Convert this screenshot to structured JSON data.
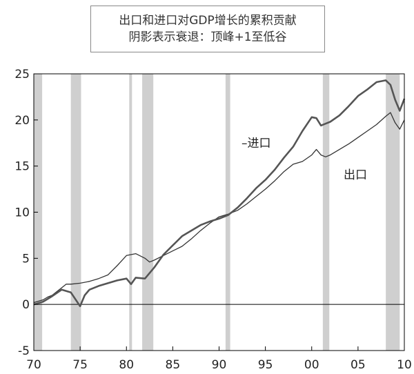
{
  "chart_data": {
    "type": "line",
    "title": "出口和进口对GDP增长的累积贡献",
    "subtitle": "阴影表示衰退：顶峰+1至低谷",
    "xlabel": "",
    "ylabel": "",
    "xlim": [
      1970,
      2010
    ],
    "ylim": [
      -5,
      25
    ],
    "x_tick_labels": [
      "70",
      "75",
      "80",
      "85",
      "90",
      "95",
      "00",
      "05",
      "10"
    ],
    "y_ticks": [
      -5,
      0,
      5,
      10,
      15,
      20,
      25
    ],
    "grid": false,
    "recessions": [
      [
        1970.0,
        1970.9
      ],
      [
        1974.0,
        1975.1
      ],
      [
        1980.3,
        1980.6
      ],
      [
        1981.7,
        1982.9
      ],
      [
        1990.7,
        1991.2
      ],
      [
        2001.2,
        2001.9
      ],
      [
        2008.0,
        2009.5
      ]
    ],
    "series": [
      {
        "name": "出口",
        "color": "#333333",
        "x": [
          1970,
          1971,
          1971.5,
          1972,
          1973,
          1973.5,
          1974,
          1975,
          1976,
          1977,
          1978,
          1979,
          1980,
          1981,
          1982,
          1982.5,
          1983,
          1984,
          1985,
          1986,
          1987,
          1988,
          1989,
          1990,
          1991,
          1992,
          1993,
          1994,
          1995,
          1996,
          1997,
          1998,
          1999,
          2000,
          2000.5,
          2001,
          2001.5,
          2002,
          2003,
          2004,
          2005,
          2006,
          2007,
          2008,
          2008.5,
          2009,
          2009.5,
          2010
        ],
        "values": [
          0.2,
          0.5,
          0.8,
          1.0,
          1.8,
          2.2,
          2.2,
          2.3,
          2.5,
          2.8,
          3.2,
          4.2,
          5.3,
          5.5,
          5.0,
          4.6,
          4.8,
          5.3,
          5.8,
          6.3,
          7.1,
          8.0,
          8.8,
          9.5,
          9.8,
          10.2,
          10.9,
          11.7,
          12.5,
          13.4,
          14.4,
          15.2,
          15.5,
          16.2,
          16.8,
          16.2,
          16.0,
          16.2,
          16.8,
          17.4,
          18.1,
          18.8,
          19.5,
          20.4,
          20.8,
          19.7,
          19.0,
          20.0
        ]
      },
      {
        "name": "进口",
        "color": "#555555",
        "x": [
          1970,
          1971,
          1972,
          1973,
          1974,
          1975,
          1975.5,
          1976,
          1977,
          1978,
          1979,
          1980,
          1980.5,
          1981,
          1982,
          1983,
          1984,
          1985,
          1986,
          1987,
          1988,
          1989,
          1990,
          1991,
          1992,
          1993,
          1994,
          1995,
          1996,
          1997,
          1998,
          1999,
          2000,
          2000.5,
          2001,
          2001.5,
          2002,
          2003,
          2004,
          2005,
          2006,
          2007,
          2008,
          2008.5,
          2009,
          2009.5,
          2010
        ],
        "values": [
          0.0,
          0.3,
          0.9,
          1.6,
          1.3,
          -0.2,
          1.0,
          1.6,
          2.0,
          2.3,
          2.6,
          2.8,
          2.2,
          2.9,
          2.8,
          4.0,
          5.4,
          6.4,
          7.4,
          8.0,
          8.6,
          9.0,
          9.3,
          9.7,
          10.5,
          11.5,
          12.6,
          13.5,
          14.6,
          15.9,
          17.1,
          18.8,
          20.3,
          20.2,
          19.4,
          19.6,
          19.8,
          20.5,
          21.5,
          22.6,
          23.3,
          24.1,
          24.3,
          23.8,
          22.2,
          21.0,
          22.3
        ]
      }
    ],
    "annotations": [
      "–进口",
      "出口"
    ]
  }
}
